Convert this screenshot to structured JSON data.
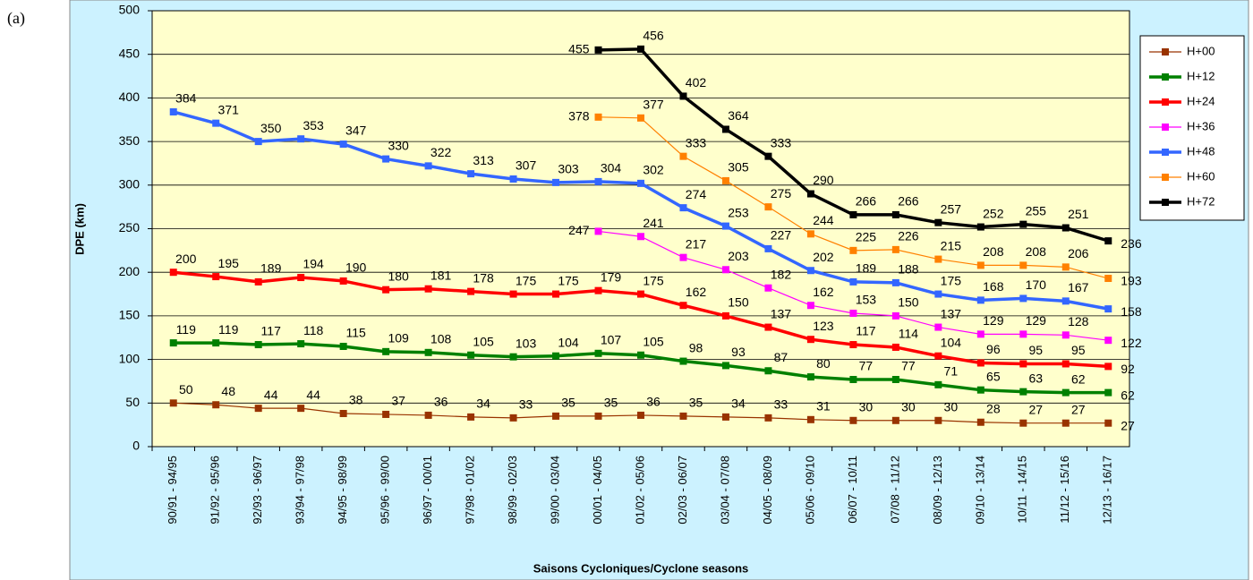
{
  "panel_label": "(a)",
  "chart_data": {
    "type": "line",
    "y_label": "DPE (km)",
    "x_label": "Saisons Cycloniques/Cyclone seasons",
    "categories": [
      "90/91 - 94/95",
      "91/92 - 95/96",
      "92/93 - 96/97",
      "93/94 - 97/98",
      "94/95 - 98/99",
      "95/96 - 99/00",
      "96/97 - 00/01",
      "97/98 - 01/02",
      "98/99 - 02/03",
      "99/00 - 03/04",
      "00/01 - 04/05",
      "01/02 - 05/06",
      "02/03 - 06/07",
      "03/04 - 07/08",
      "04/05 - 08/09",
      "05/06 - 09/10",
      "06/07 - 10/11",
      "07/08 - 11/12",
      "08/09 - 12/13",
      "09/10 - 13/14",
      "10/11 - 14/15",
      "11/12 - 15/16",
      "12/13 - 16/17"
    ],
    "ylim": [
      0,
      500
    ],
    "yticks": [
      0,
      50,
      100,
      150,
      200,
      250,
      300,
      350,
      400,
      450,
      500
    ],
    "grid": true,
    "legend": "right",
    "series": [
      {
        "name": "H+00",
        "color": "#993300",
        "values": [
          50,
          48,
          44,
          44,
          38,
          37,
          36,
          34,
          33,
          35,
          35,
          36,
          35,
          34,
          33,
          31,
          30,
          30,
          30,
          28,
          27,
          27,
          27
        ]
      },
      {
        "name": "H+12",
        "color": "#008000",
        "values": [
          119,
          119,
          117,
          118,
          115,
          109,
          108,
          105,
          103,
          104,
          107,
          105,
          98,
          93,
          87,
          80,
          77,
          77,
          71,
          65,
          63,
          62,
          62
        ]
      },
      {
        "name": "H+24",
        "color": "#ff0000",
        "values": [
          200,
          195,
          189,
          194,
          190,
          180,
          181,
          178,
          175,
          175,
          179,
          175,
          162,
          150,
          137,
          123,
          117,
          114,
          104,
          96,
          95,
          95,
          92
        ]
      },
      {
        "name": "H+36",
        "color": "#ff00ff",
        "values": [
          null,
          null,
          null,
          null,
          null,
          null,
          null,
          null,
          null,
          null,
          247,
          241,
          217,
          203,
          182,
          162,
          153,
          150,
          137,
          129,
          129,
          128,
          122
        ]
      },
      {
        "name": "H+48",
        "color": "#3366ff",
        "values": [
          384,
          371,
          350,
          353,
          347,
          330,
          322,
          313,
          307,
          303,
          304,
          302,
          274,
          253,
          227,
          202,
          189,
          188,
          175,
          168,
          170,
          167,
          158
        ]
      },
      {
        "name": "H+60",
        "color": "#ff8000",
        "values": [
          null,
          null,
          null,
          null,
          null,
          null,
          null,
          null,
          null,
          null,
          378,
          377,
          333,
          305,
          275,
          244,
          225,
          226,
          215,
          208,
          208,
          206,
          193
        ]
      },
      {
        "name": "H+72",
        "color": "#000000",
        "values": [
          null,
          null,
          null,
          null,
          null,
          null,
          null,
          null,
          null,
          null,
          455,
          456,
          402,
          364,
          333,
          290,
          266,
          266,
          257,
          252,
          255,
          251,
          236
        ]
      }
    ]
  }
}
